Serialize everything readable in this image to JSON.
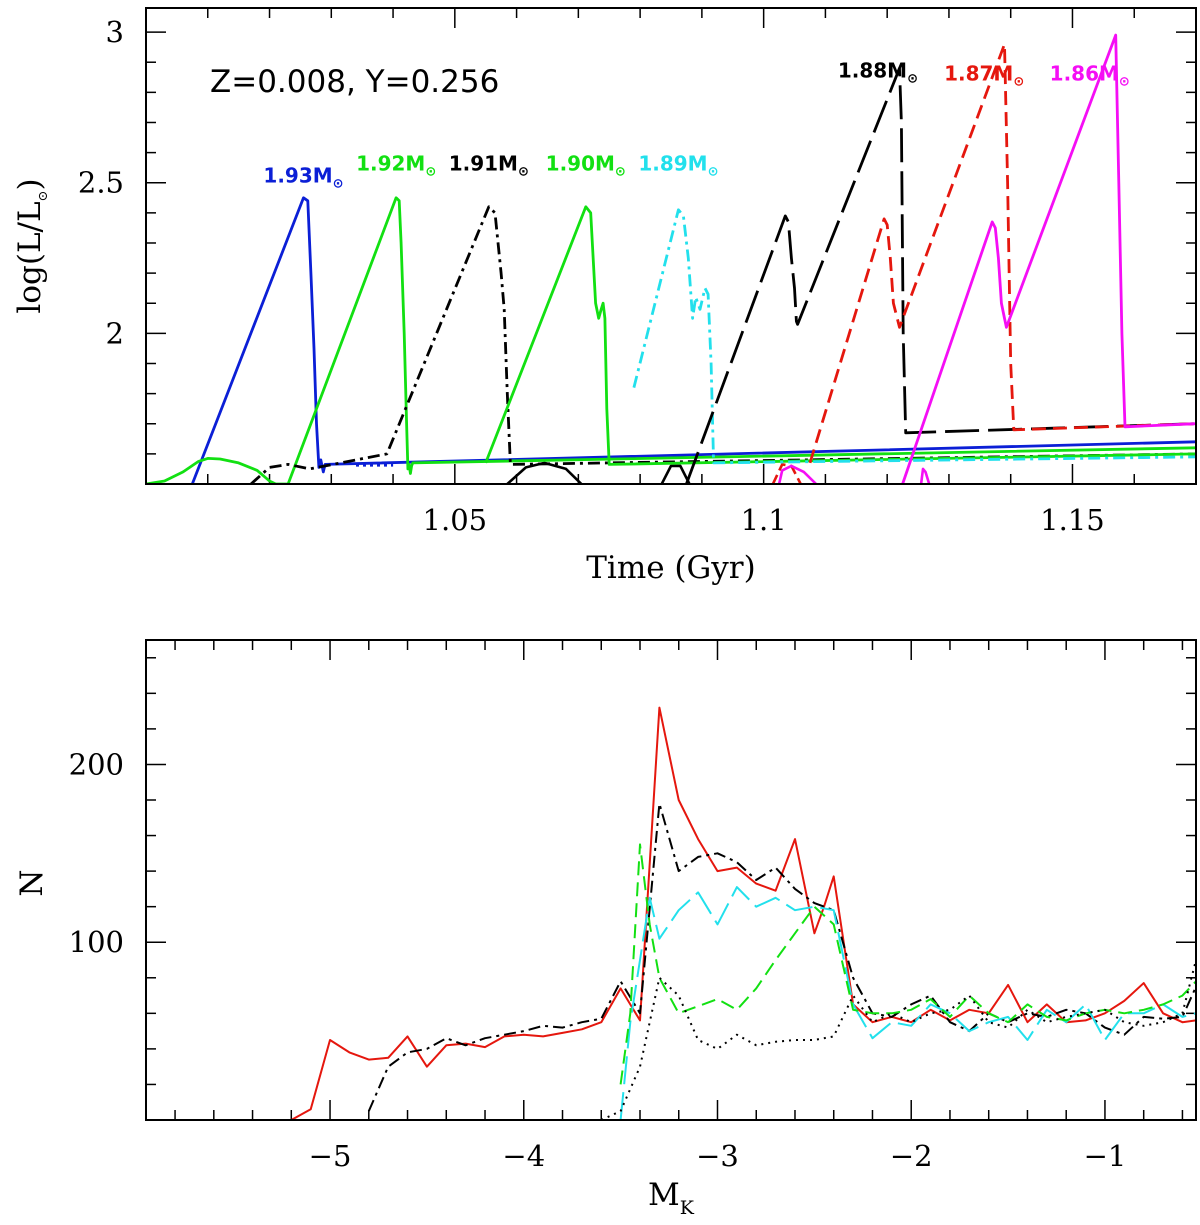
{
  "chart_data": [
    {
      "type": "line",
      "title": "",
      "annotation": "Z=0.008,  Y=0.256",
      "xlabel": "Time (Gyr)",
      "ylabel": "log(L/L⊙)",
      "xlim": [
        1.0,
        1.17
      ],
      "ylim": [
        1.5,
        3.08
      ],
      "x_ticks": [
        1.05,
        1.1,
        1.15
      ],
      "x_tick_labels": [
        "1.05",
        "1.1",
        "1.15"
      ],
      "y_ticks": [
        2,
        2.5,
        3
      ],
      "y_tick_labels": [
        "2",
        "2.5",
        "3"
      ],
      "series": [
        {
          "name": "1.93M⊙",
          "mass": "1.93",
          "color": "#0b1fd6",
          "dash": "",
          "label_x": 1.0255,
          "label_y": 2.5,
          "x": [
            1.0075,
            1.0255,
            1.0262,
            1.0267,
            1.0272,
            1.0276,
            1.028,
            1.0283,
            1.0287,
            1.029,
            1.17
          ],
          "y": [
            1.5,
            2.45,
            2.44,
            2.2,
            1.95,
            1.7,
            1.555,
            1.58,
            1.54,
            1.565,
            1.64
          ]
        },
        {
          "name": "1.92M⊙",
          "mass": "1.92",
          "color": "#12e012",
          "dash": "",
          "label_x": 1.0405,
          "label_y": 2.54,
          "x": [
            1.0,
            1.003,
            1.006,
            1.0085,
            1.01,
            1.012,
            1.015,
            1.018,
            1.02,
            1.021,
            1.023,
            1.0405,
            1.041,
            1.0413,
            1.0418,
            1.0422,
            1.0424,
            1.0426,
            1.0428,
            1.043,
            1.0432,
            1.17
          ],
          "y": [
            1.5,
            1.51,
            1.54,
            1.575,
            1.585,
            1.583,
            1.57,
            1.545,
            1.51,
            1.5,
            1.5,
            2.45,
            2.44,
            2.3,
            2.0,
            1.7,
            1.55,
            1.565,
            1.535,
            1.56,
            1.57,
            1.62
          ]
        },
        {
          "name": "1.91M⊙",
          "mass": "1.91",
          "color": "#000000",
          "dash": "12,5,3,5",
          "label_x": 1.0555,
          "label_y": 2.54,
          "x": [
            1.017,
            1.02,
            1.023,
            1.0265,
            1.039,
            1.0555,
            1.0565,
            1.0575,
            1.058,
            1.0585,
            1.059,
            1.17
          ],
          "y": [
            1.5,
            1.555,
            1.565,
            1.55,
            1.6,
            2.42,
            2.4,
            2.2,
            2.08,
            1.8,
            1.565,
            1.6
          ]
        },
        {
          "name": "1.90M⊙",
          "mass": "1.90",
          "color": "#12e012",
          "dash": "",
          "label_x": 1.0712,
          "label_y": 2.54,
          "x": [
            1.055,
            1.0712,
            1.072,
            1.0728,
            1.0733,
            1.0737,
            1.074,
            1.0743,
            1.0746,
            1.075,
            1.17
          ],
          "y": [
            1.57,
            2.42,
            2.4,
            2.1,
            2.05,
            2.08,
            2.1,
            2.05,
            1.75,
            1.565,
            1.6
          ]
        },
        {
          "name": "1.89M⊙",
          "mass": "1.89",
          "color": "#22e0ec",
          "dash": "12,5,3,5",
          "label_x": 1.0862,
          "label_y": 2.54,
          "x": [
            1.079,
            1.0862,
            1.087,
            1.0878,
            1.0885,
            1.089,
            1.0897,
            1.0905,
            1.091,
            1.0915,
            1.0919,
            1.17
          ],
          "y": [
            1.82,
            2.41,
            2.39,
            2.25,
            2.05,
            2.12,
            2.08,
            2.15,
            2.13,
            1.9,
            1.57,
            1.59
          ]
        },
        {
          "name": "1.88M⊙",
          "mass": "1.88",
          "color": "#000000",
          "dash": "34,9",
          "label_x": 1.1185,
          "label_y": 2.85,
          "x": [
            1.0875,
            1.1035,
            1.104,
            1.1045,
            1.105,
            1.1053,
            1.1055,
            1.122,
            1.1223,
            1.1226,
            1.123,
            1.17
          ],
          "y": [
            1.5,
            2.39,
            2.37,
            2.25,
            2.15,
            2.04,
            2.03,
            2.88,
            2.7,
            2.0,
            1.67,
            1.7
          ]
        },
        {
          "name": "1.87M⊙",
          "mass": "1.87",
          "color": "#e5170e",
          "dash": "14,7",
          "label_x": 1.1357,
          "label_y": 2.84,
          "x": [
            1.1075,
            1.1195,
            1.12,
            1.1205,
            1.121,
            1.122,
            1.139,
            1.1395,
            1.14,
            1.1405,
            1.17
          ],
          "y": [
            1.57,
            2.38,
            2.36,
            2.25,
            2.1,
            2.02,
            2.96,
            2.5,
            1.9,
            1.68,
            1.7
          ]
        },
        {
          "name": "1.86M⊙",
          "mass": "1.86",
          "color": "#f50ef5",
          "dash": "",
          "label_x": 1.1528,
          "label_y": 2.84,
          "x": [
            1.1225,
            1.137,
            1.1375,
            1.138,
            1.1385,
            1.139,
            1.1393,
            1.157,
            1.1575,
            1.158,
            1.1585,
            1.17
          ],
          "y": [
            1.5,
            2.37,
            2.35,
            2.25,
            2.1,
            2.05,
            2.02,
            2.99,
            2.5,
            2.0,
            1.69,
            1.7
          ]
        }
      ],
      "valley_segments": [
        {
          "color": "#0b1fd6",
          "dash": "3,4",
          "x": [
            1.034,
            1.04
          ],
          "y": [
            1.562,
            1.562
          ]
        },
        {
          "color": "#000000",
          "dash": "",
          "x": [
            1.0585,
            1.0615,
            1.0645,
            1.068,
            1.0705
          ],
          "y": [
            1.5,
            1.555,
            1.57,
            1.55,
            1.5
          ]
        },
        {
          "color": "#e5170e",
          "dash": "10,5",
          "x": [
            1.1015,
            1.103,
            1.1045,
            1.106
          ],
          "y": [
            1.5,
            1.565,
            1.56,
            1.5
          ]
        },
        {
          "color": "#f50ef5",
          "dash": "",
          "x": [
            1.1025,
            1.103,
            1.1045,
            1.1065,
            1.1085
          ],
          "y": [
            1.5,
            1.545,
            1.56,
            1.54,
            1.5
          ]
        },
        {
          "color": "#f50ef5",
          "dash": "",
          "x": [
            1.1255,
            1.1258,
            1.1262,
            1.1268
          ],
          "y": [
            1.5,
            1.55,
            1.54,
            1.5
          ]
        },
        {
          "color": "#000000",
          "dash": "",
          "x": [
            1.0835,
            1.085,
            1.0865,
            1.088
          ],
          "y": [
            1.5,
            1.56,
            1.56,
            1.5
          ]
        }
      ]
    },
    {
      "type": "line",
      "title": "",
      "xlabel": "Mₖ",
      "xlabel_main": "M",
      "xlabel_sub": "K",
      "ylabel": "N",
      "xlim": [
        -5.95,
        -0.53
      ],
      "ylim": [
        0,
        270
      ],
      "x_ticks": [
        -5,
        -4,
        -3,
        -2,
        -1
      ],
      "x_tick_labels": [
        "−5",
        "−4",
        "−3",
        "−2",
        "−1"
      ],
      "y_ticks": [
        100,
        200
      ],
      "y_tick_labels": [
        "100",
        "200"
      ],
      "series": [
        {
          "name": "solid-red",
          "color": "#e5170e",
          "dash": "",
          "x": [
            -5.2,
            -5.1,
            -5.0,
            -4.9,
            -4.8,
            -4.7,
            -4.6,
            -4.5,
            -4.4,
            -4.3,
            -4.2,
            -4.1,
            -4.0,
            -3.9,
            -3.8,
            -3.7,
            -3.6,
            -3.5,
            -3.4,
            -3.3,
            -3.2,
            -3.1,
            -3.0,
            -2.9,
            -2.8,
            -2.7,
            -2.6,
            -2.5,
            -2.45,
            -2.4,
            -2.3,
            -2.2,
            -2.1,
            -2.0,
            -1.9,
            -1.8,
            -1.7,
            -1.6,
            -1.5,
            -1.4,
            -1.3,
            -1.2,
            -1.1,
            -1.0,
            -0.9,
            -0.8,
            -0.7,
            -0.6,
            -0.53
          ],
          "y": [
            0,
            6,
            45,
            38,
            34,
            35,
            47,
            30,
            42,
            43,
            41,
            47,
            48,
            47,
            49,
            51,
            55,
            74,
            56,
            232,
            180,
            158,
            140,
            142,
            133,
            129,
            158,
            105,
            120,
            137,
            65,
            55,
            58,
            55,
            62,
            56,
            62,
            60,
            76,
            55,
            65,
            55,
            56,
            60,
            67,
            77,
            60,
            55,
            56
          ]
        },
        {
          "name": "dash-dot-black",
          "color": "#000000",
          "dash": "12,5,3,5",
          "x": [
            -4.8,
            -4.7,
            -4.6,
            -4.5,
            -4.4,
            -4.3,
            -4.2,
            -4.1,
            -4.0,
            -3.9,
            -3.8,
            -3.7,
            -3.6,
            -3.5,
            -3.4,
            -3.3,
            -3.2,
            -3.1,
            -3.0,
            -2.9,
            -2.8,
            -2.7,
            -2.6,
            -2.5,
            -2.4,
            -2.3,
            -2.2,
            -2.1,
            -2.0,
            -1.9,
            -1.8,
            -1.7,
            -1.6,
            -1.5,
            -1.4,
            -1.3,
            -1.2,
            -1.1,
            -1.0,
            -0.9,
            -0.8,
            -0.7,
            -0.6,
            -0.53
          ],
          "y": [
            5,
            30,
            38,
            40,
            46,
            42,
            46,
            48,
            50,
            53,
            52,
            55,
            57,
            78,
            60,
            178,
            140,
            148,
            150,
            145,
            135,
            142,
            130,
            122,
            118,
            80,
            60,
            58,
            65,
            70,
            55,
            50,
            60,
            55,
            60,
            58,
            62,
            60,
            52,
            48,
            58,
            57,
            58,
            75
          ]
        },
        {
          "name": "long-dash-cyan",
          "color": "#22e0ec",
          "dash": "28,8",
          "x": [
            -3.5,
            -3.45,
            -3.4,
            -3.35,
            -3.3,
            -3.2,
            -3.1,
            -3.0,
            -2.9,
            -2.8,
            -2.7,
            -2.6,
            -2.5,
            -2.4,
            -2.3,
            -2.2,
            -2.1,
            -2.0,
            -1.9,
            -1.8,
            -1.7,
            -1.6,
            -1.5,
            -1.4,
            -1.3,
            -1.2,
            -1.1,
            -1.0,
            -0.9,
            -0.8,
            -0.7,
            -0.6,
            -0.53
          ],
          "y": [
            0,
            55,
            90,
            125,
            102,
            118,
            128,
            110,
            131,
            120,
            125,
            118,
            120,
            118,
            65,
            46,
            55,
            53,
            65,
            60,
            50,
            55,
            58,
            45,
            62,
            55,
            65,
            45,
            60,
            60,
            65,
            58,
            60
          ]
        },
        {
          "name": "dashed-green",
          "color": "#12e012",
          "dash": "14,7",
          "x": [
            -3.5,
            -3.45,
            -3.4,
            -3.35,
            -3.3,
            -3.2,
            -3.1,
            -3.0,
            -2.9,
            -2.8,
            -2.7,
            -2.6,
            -2.5,
            -2.4,
            -2.3,
            -2.2,
            -2.1,
            -2.0,
            -1.9,
            -1.8,
            -1.7,
            -1.6,
            -1.5,
            -1.4,
            -1.3,
            -1.2,
            -1.1,
            -1.0,
            -0.9,
            -0.8,
            -0.7,
            -0.6,
            -0.53
          ],
          "y": [
            20,
            60,
            155,
            110,
            80,
            60,
            64,
            68,
            62,
            74,
            90,
            105,
            120,
            110,
            62,
            60,
            60,
            62,
            68,
            58,
            70,
            60,
            55,
            65,
            58,
            56,
            60,
            62,
            60,
            62,
            65,
            70,
            78
          ]
        },
        {
          "name": "dotted-black",
          "color": "#000000",
          "dash": "2,5",
          "x": [
            -3.6,
            -3.5,
            -3.4,
            -3.3,
            -3.2,
            -3.1,
            -3.0,
            -2.9,
            -2.8,
            -2.7,
            -2.6,
            -2.5,
            -2.4,
            -2.3,
            -2.2,
            -2.1,
            -2.0,
            -1.9,
            -1.8,
            -1.7,
            -1.6,
            -1.5,
            -1.4,
            -1.3,
            -1.2,
            -1.1,
            -1.0,
            -0.9,
            -0.8,
            -0.7,
            -0.6,
            -0.53
          ],
          "y": [
            0,
            5,
            30,
            80,
            70,
            45,
            40,
            48,
            42,
            44,
            45,
            45,
            47,
            70,
            55,
            60,
            55,
            60,
            62,
            70,
            55,
            52,
            62,
            55,
            58,
            60,
            62,
            55,
            53,
            55,
            60,
            90
          ]
        }
      ]
    }
  ]
}
